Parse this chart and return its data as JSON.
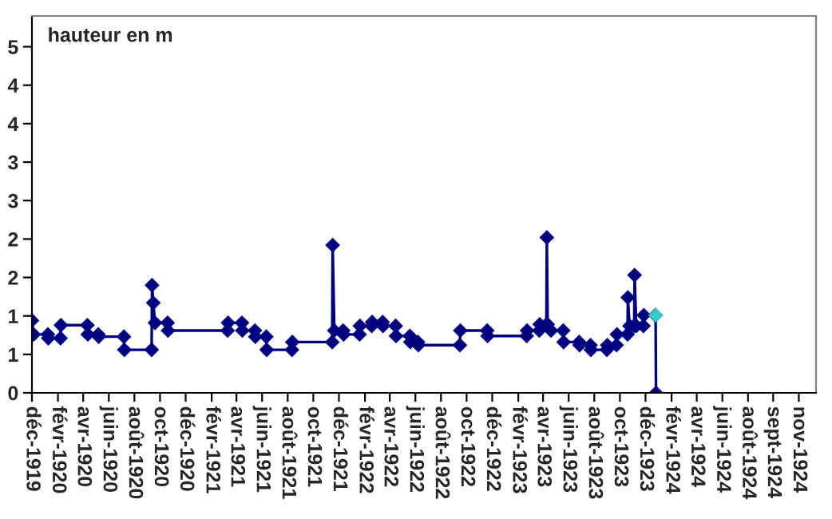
{
  "chart_data": {
    "type": "line",
    "annotations": [
      "hauteur en m"
    ],
    "series": [
      {
        "color": "#000080",
        "x": [
          "1919-12-01",
          "1919-12-05",
          "1920-01-08",
          "1920-01-09",
          "1920-02-07",
          "1920-02-08",
          "1920-04-11",
          "1920-04-12",
          "1920-05-07",
          "1920-05-08",
          "1920-07-07",
          "1920-07-08",
          "1920-09-11",
          "1920-09-12",
          "1920-09-15",
          "1920-09-19",
          "1920-10-19",
          "1920-10-20",
          "1921-03-11",
          "1921-03-12",
          "1921-04-14",
          "1921-04-15",
          "1921-05-15",
          "1921-05-16",
          "1921-06-11",
          "1921-06-12",
          "1921-08-11",
          "1921-08-12",
          "1921-11-15",
          "1921-11-16",
          "1921-11-20",
          "1921-12-11",
          "1921-12-12",
          "1922-01-19",
          "1922-01-20",
          "1922-02-17",
          "1922-02-18",
          "1922-03-15",
          "1922-03-16",
          "1922-04-15",
          "1922-04-16",
          "1922-05-19",
          "1922-05-20",
          "1922-06-07",
          "1922-06-08",
          "1922-09-15",
          "1922-09-16",
          "1922-11-19",
          "1922-11-20",
          "1923-02-21",
          "1923-02-22",
          "1923-03-23",
          "1923-03-24",
          "1923-04-09",
          "1923-04-10",
          "1923-04-12",
          "1923-04-20",
          "1923-05-19",
          "1923-05-20",
          "1923-06-26",
          "1923-06-27",
          "1923-07-23",
          "1923-07-24",
          "1923-08-31",
          "1923-09-01",
          "1923-09-23",
          "1923-09-24",
          "1923-10-19",
          "1923-10-20",
          "1923-10-24",
          "1923-11-04",
          "1923-11-05",
          "1923-11-09",
          "1923-11-26",
          "1923-11-27",
          "1923-12-24",
          "1923-12-25",
          "1923-12-26"
        ],
        "values": [
          0.94,
          0.76,
          0.76,
          0.71,
          0.71,
          0.88,
          0.88,
          0.76,
          0.76,
          0.73,
          0.73,
          0.56,
          0.56,
          1.4,
          1.17,
          0.91,
          0.91,
          0.81,
          0.81,
          0.91,
          0.91,
          0.81,
          0.81,
          0.73,
          0.73,
          0.56,
          0.56,
          0.66,
          0.66,
          1.92,
          0.81,
          0.81,
          0.76,
          0.76,
          0.87,
          0.87,
          0.92,
          0.92,
          0.87,
          0.87,
          0.74,
          0.74,
          0.66,
          0.66,
          0.62,
          0.62,
          0.81,
          0.81,
          0.74,
          0.74,
          0.81,
          0.81,
          0.89,
          0.89,
          2.02,
          0.89,
          0.81,
          0.81,
          0.66,
          0.66,
          0.62,
          0.62,
          0.56,
          0.56,
          0.62,
          0.62,
          0.76,
          0.76,
          1.24,
          0.87,
          0.87,
          1.53,
          0.87,
          0.87,
          1.01,
          1.01,
          1.01,
          0
        ]
      },
      {
        "color": "#33cccc",
        "x": [
          "1923-12-25"
        ],
        "values": [
          1.01
        ]
      }
    ],
    "marker": "diamond",
    "line_style": "solid",
    "grid": false,
    "legend": false,
    "xlim": [
      "1919-12-01",
      "1925-01-10"
    ],
    "xticks": [
      {
        "value": "1919-12-01",
        "label": "déc-1919"
      },
      {
        "value": "1920-02-01",
        "label": "févr-1920"
      },
      {
        "value": "1920-04-01",
        "label": "avr-1920"
      },
      {
        "value": "1920-06-01",
        "label": "juin-1920"
      },
      {
        "value": "1920-08-01",
        "label": "août-1920"
      },
      {
        "value": "1920-10-01",
        "label": "oct-1920"
      },
      {
        "value": "1920-12-01",
        "label": "déc-1920"
      },
      {
        "value": "1921-02-01",
        "label": "févr-1921"
      },
      {
        "value": "1921-04-01",
        "label": "avr-1921"
      },
      {
        "value": "1921-06-01",
        "label": "juin-1921"
      },
      {
        "value": "1921-08-01",
        "label": "août-1921"
      },
      {
        "value": "1921-10-01",
        "label": "oct-1921"
      },
      {
        "value": "1921-12-01",
        "label": "déc-1921"
      },
      {
        "value": "1922-02-01",
        "label": "févr-1922"
      },
      {
        "value": "1922-04-01",
        "label": "avr-1922"
      },
      {
        "value": "1922-06-01",
        "label": "juin-1922"
      },
      {
        "value": "1922-08-01",
        "label": "août-1922"
      },
      {
        "value": "1922-10-01",
        "label": "oct-1922"
      },
      {
        "value": "1922-12-01",
        "label": "déc-1922"
      },
      {
        "value": "1923-02-01",
        "label": "févr-1923"
      },
      {
        "value": "1923-04-01",
        "label": "avr-1923"
      },
      {
        "value": "1923-06-01",
        "label": "juin-1923"
      },
      {
        "value": "1923-08-01",
        "label": "août-1923"
      },
      {
        "value": "1923-10-01",
        "label": "oct-1923"
      },
      {
        "value": "1923-12-01",
        "label": "déc-1923"
      },
      {
        "value": "1924-02-01",
        "label": "févr-1924"
      },
      {
        "value": "1924-04-01",
        "label": "avr-1924"
      },
      {
        "value": "1924-06-01",
        "label": "juin-1924"
      },
      {
        "value": "1924-08-01",
        "label": "août-1924"
      },
      {
        "value": "1924-09-30",
        "label": "sept-1924"
      },
      {
        "value": "1924-11-30",
        "label": "nov-1924"
      }
    ],
    "ylim": [
      0,
      4.9
    ],
    "yticks": [
      0,
      {
        "value": 0.5,
        "label": "1"
      },
      1,
      {
        "value": 1.5,
        "label": "2"
      },
      2,
      {
        "value": 2.5,
        "label": "3"
      },
      3,
      {
        "value": 3.5,
        "label": "4"
      },
      4,
      {
        "value": 4.5,
        "label": "5"
      }
    ]
  }
}
